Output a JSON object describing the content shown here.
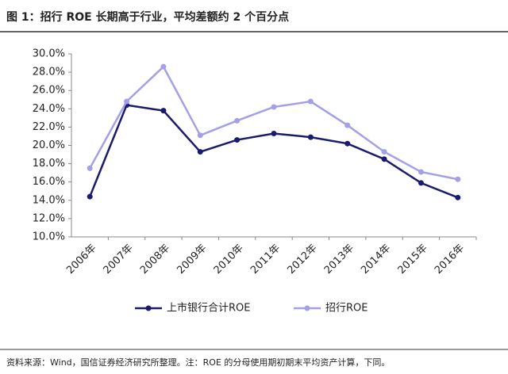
{
  "chart_data": {
    "type": "line",
    "title": "图 1：招行 ROE 长期高于行业，平均差额约 2 个百分点",
    "note": "资料来源：Wind，国信证券经济研究所整理。注：ROE 的分母使用期初期末平均资产计算，下同。",
    "categories": [
      "2006年",
      "2007年",
      "2008年",
      "2009年",
      "2010年",
      "2011年",
      "2012年",
      "2013年",
      "2014年",
      "2015年",
      "2016年"
    ],
    "series": [
      {
        "name": "上市银行合计ROE",
        "color": "#1a1a6e",
        "values": [
          14.4,
          24.4,
          23.8,
          19.3,
          20.6,
          21.3,
          20.9,
          20.2,
          18.5,
          15.9,
          14.3
        ]
      },
      {
        "name": "招行ROE",
        "color": "#a3a0e8",
        "values": [
          17.5,
          24.8,
          28.6,
          21.1,
          22.7,
          24.2,
          24.8,
          22.2,
          19.3,
          17.1,
          16.3
        ]
      }
    ],
    "ylim": [
      10,
      30
    ],
    "yticks": [
      {
        "value": 10,
        "label": "10.0%"
      },
      {
        "value": 12,
        "label": "12.0%"
      },
      {
        "value": 14,
        "label": "14.0%"
      },
      {
        "value": 16,
        "label": "16.0%"
      },
      {
        "value": 18,
        "label": "18.0%"
      },
      {
        "value": 20,
        "label": "20.0%"
      },
      {
        "value": 22,
        "label": "22.0%"
      },
      {
        "value": 24,
        "label": "24.0%"
      },
      {
        "value": 26,
        "label": "26.0%"
      },
      {
        "value": 28,
        "label": "28.0%"
      },
      {
        "value": 30,
        "label": "30.0%"
      }
    ],
    "grid": false
  }
}
